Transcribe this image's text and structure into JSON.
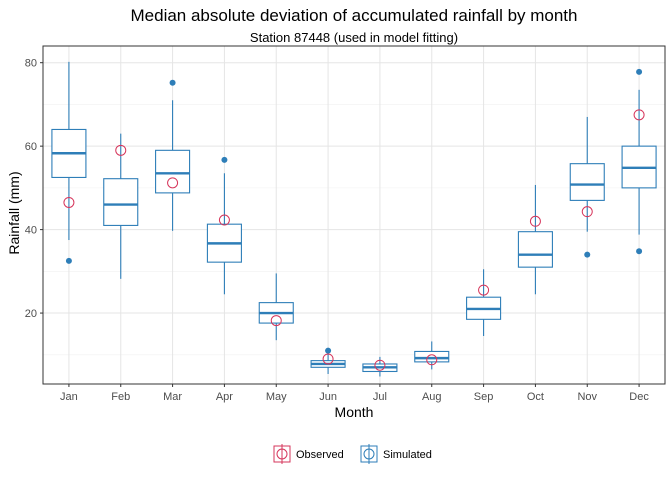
{
  "chart_data": {
    "type": "box",
    "title": "Median absolute deviation of accumulated rainfall by month",
    "subtitle": "Station 87448 (used in model fitting)",
    "xlabel": "Month",
    "ylabel": "Rainfall (mm)",
    "ylim": [
      3,
      84
    ],
    "yticks": [
      20,
      40,
      60,
      80
    ],
    "categories": [
      "Jan",
      "Feb",
      "Mar",
      "Apr",
      "May",
      "Jun",
      "Jul",
      "Aug",
      "Sep",
      "Oct",
      "Nov",
      "Dec"
    ],
    "grid": true,
    "legend_position": "bottom",
    "legend": [
      {
        "name": "Observed",
        "color": "#D6355B"
      },
      {
        "name": "Simulated",
        "color": "#2E7EB8"
      }
    ],
    "series": [
      {
        "name": "Simulated",
        "type": "box",
        "color": "#2E7EB8",
        "boxes": [
          {
            "whisker_low": 37.5,
            "q1": 52.5,
            "median": 58.3,
            "q3": 64.0,
            "whisker_high": 80.2,
            "outliers": [
              32.5
            ]
          },
          {
            "whisker_low": 28.2,
            "q1": 41.0,
            "median": 46.0,
            "q3": 52.2,
            "whisker_high": 63.0,
            "outliers": []
          },
          {
            "whisker_low": 39.7,
            "q1": 48.8,
            "median": 53.5,
            "q3": 59.0,
            "whisker_high": 71.0,
            "outliers": [
              75.2
            ]
          },
          {
            "whisker_low": 24.5,
            "q1": 32.2,
            "median": 36.7,
            "q3": 41.3,
            "whisker_high": 53.5,
            "outliers": [
              56.7
            ]
          },
          {
            "whisker_low": 13.5,
            "q1": 17.6,
            "median": 20.0,
            "q3": 22.5,
            "whisker_high": 29.5,
            "outliers": []
          },
          {
            "whisker_low": 5.4,
            "q1": 7.0,
            "median": 7.8,
            "q3": 8.6,
            "whisker_high": 10.2,
            "outliers": [
              11.0
            ]
          },
          {
            "whisker_low": 4.8,
            "q1": 6.0,
            "median": 7.0,
            "q3": 7.8,
            "whisker_high": 9.5,
            "outliers": []
          },
          {
            "whisker_low": 6.5,
            "q1": 8.3,
            "median": 9.2,
            "q3": 10.8,
            "whisker_high": 13.2,
            "outliers": []
          },
          {
            "whisker_low": 14.5,
            "q1": 18.5,
            "median": 21.0,
            "q3": 23.8,
            "whisker_high": 30.5,
            "outliers": []
          },
          {
            "whisker_low": 24.5,
            "q1": 31.0,
            "median": 34.0,
            "q3": 39.5,
            "whisker_high": 50.7,
            "outliers": []
          },
          {
            "whisker_low": 39.5,
            "q1": 47.0,
            "median": 50.8,
            "q3": 55.8,
            "whisker_high": 67.0,
            "outliers": [
              34.0
            ]
          },
          {
            "whisker_low": 38.8,
            "q1": 50.0,
            "median": 54.8,
            "q3": 60.0,
            "whisker_high": 73.5,
            "outliers": [
              34.8,
              77.8
            ]
          }
        ]
      },
      {
        "name": "Observed",
        "type": "point",
        "color": "#D6355B",
        "values": [
          46.5,
          59.0,
          51.2,
          42.3,
          18.2,
          9.0,
          7.5,
          8.8,
          25.5,
          42.0,
          44.3,
          67.5
        ]
      }
    ]
  }
}
